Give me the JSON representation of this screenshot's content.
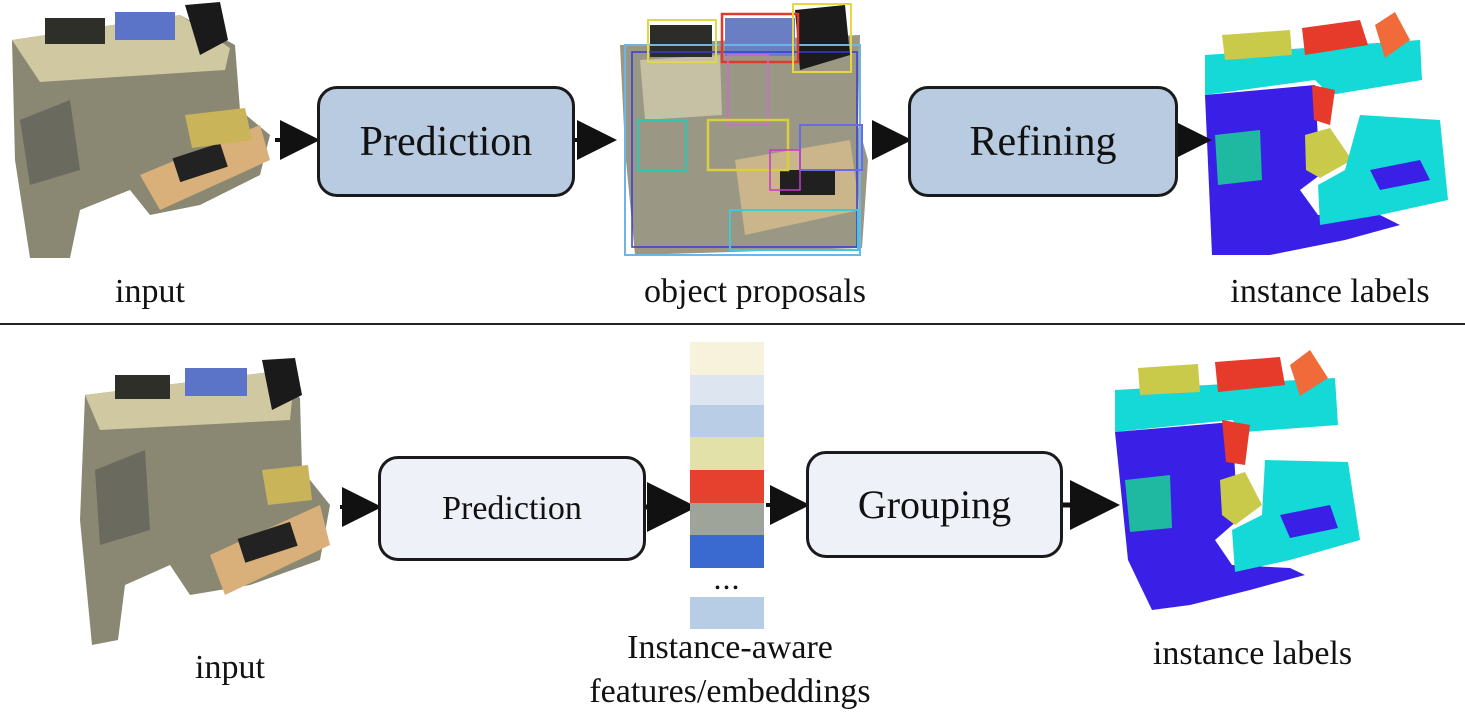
{
  "top_row": {
    "input_caption": "input",
    "step1_label": "Prediction",
    "proposals_caption": "object proposals",
    "step2_label": "Refining",
    "output_caption": "instance labels"
  },
  "bottom_row": {
    "input_caption": "input",
    "step1_label": "Prediction",
    "features_ellipsis": "...",
    "features_caption_line1": "Instance-aware",
    "features_caption_line2": "features/embeddings",
    "step2_label": "Grouping",
    "output_caption": "instance labels"
  },
  "colors": {
    "top_box": "#b8cbe0",
    "bottom_box": "#eef2f8",
    "instance_blue": "#3a1fe6",
    "instance_cyan": "#14d9d6",
    "instance_olive": "#c9c94a",
    "instance_red": "#e63a2b",
    "instance_orange": "#f06a3a",
    "instance_teal": "#1fb8a0",
    "feature_cells": [
      "#f6f2dc",
      "#dde6f0",
      "#b9cde6",
      "#e2e2a8",
      "#e6402e",
      "#9ea49a",
      "#3a6ad0",
      "#b7cde6"
    ]
  }
}
